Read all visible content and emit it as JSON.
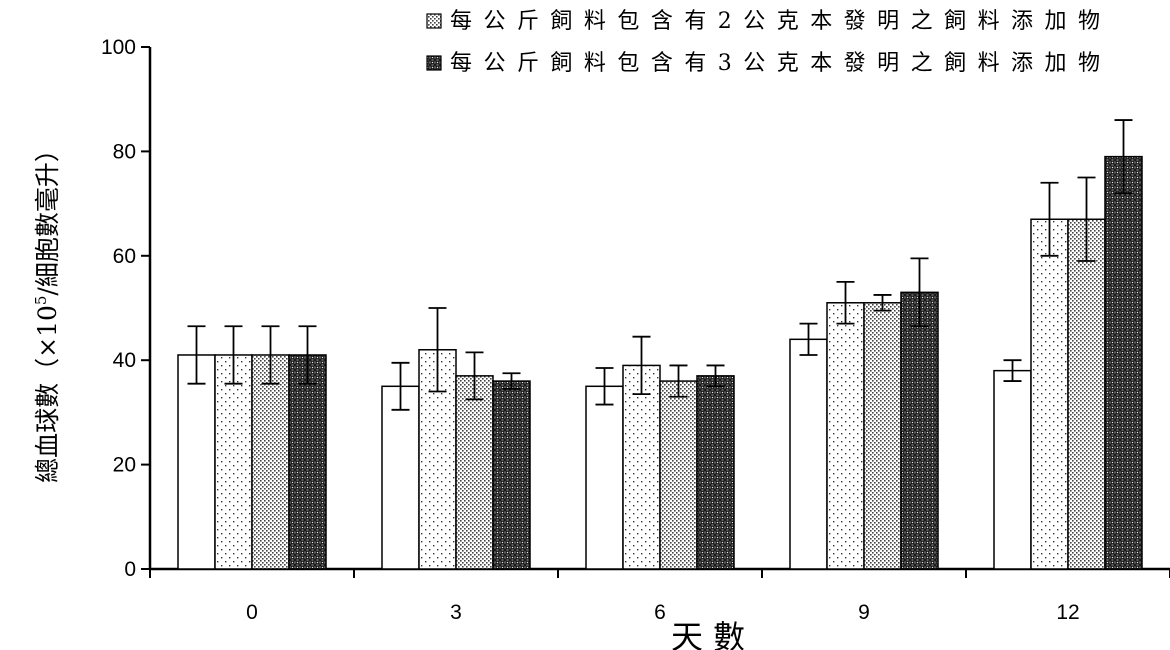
{
  "chart_data": {
    "type": "bar",
    "title": "",
    "xlabel": "天數",
    "ylabel": "總血球數（×10⁵/細胞數毫升）",
    "ylabel_parts": {
      "main": "總血球數（×10",
      "sup": "5",
      "rest": "/細胞數毫升）"
    },
    "categories": [
      "0",
      "3",
      "6",
      "9",
      "12"
    ],
    "ylim": [
      0,
      100
    ],
    "yticks": [
      "0",
      "20",
      "40",
      "60",
      "80",
      "100"
    ],
    "grid": false,
    "legend_position": "top-right",
    "series": [
      {
        "pattern": "plain",
        "values": [
          41,
          35,
          35,
          44,
          38
        ],
        "errors": [
          5.5,
          4.5,
          3.5,
          3,
          2
        ]
      },
      {
        "pattern": "sparse-dots",
        "values": [
          41,
          42,
          39,
          51,
          67
        ],
        "errors": [
          5.5,
          8,
          5.5,
          4,
          7
        ]
      },
      {
        "name": "每公斤飼料包含有2公克本發明之飼料添加物",
        "pattern": "dense-dots",
        "values": [
          41,
          37,
          36,
          51,
          67
        ],
        "errors": [
          5.5,
          4.5,
          3,
          1.5,
          8
        ]
      },
      {
        "name": "每公斤飼料包含有3公克本發明之飼料添加物",
        "pattern": "crosshatch",
        "values": [
          41,
          36,
          37,
          53,
          79
        ],
        "errors": [
          5.5,
          1.5,
          2,
          6.5,
          7
        ]
      }
    ]
  }
}
